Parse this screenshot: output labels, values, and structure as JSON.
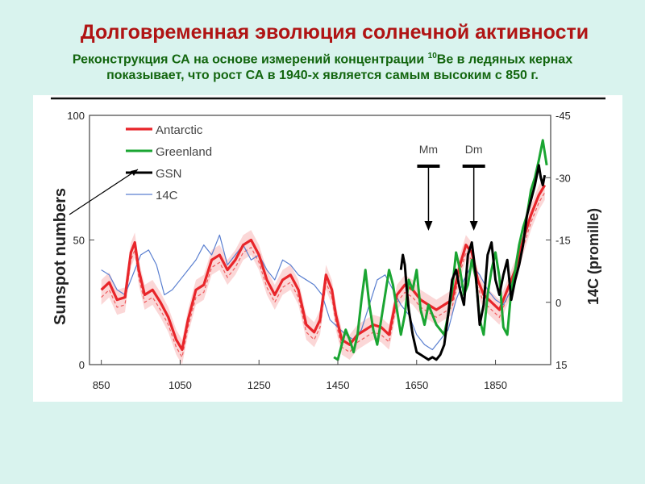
{
  "page": {
    "title": "Долговременная эволюция солнечной активности",
    "subtitle_line1_a": "Реконструкция СА на основе измерений концентрации ",
    "subtitle_line1_sup": "10",
    "subtitle_line1_b": "Be в ледяных кернах",
    "subtitle_line2": "показывает, что рост СА в 1940-х является самым высоким с 850 г."
  },
  "colors": {
    "antarctic": "#e8252a",
    "greenland": "#1aa532",
    "gsn": "#000000",
    "c14": "#5a7fd0",
    "shade": "#f7b7b7",
    "title": "#b01414",
    "subtitle": "#13660f",
    "background": "#d9f3ee"
  },
  "chart_data": {
    "type": "line",
    "xlabel": "",
    "ylabel": "Sunspot numbers",
    "y2label": "14C (promille)",
    "xlim": [
      820,
      1990
    ],
    "ylim": [
      0,
      100
    ],
    "y2lim": [
      15,
      -45
    ],
    "x_ticks": [
      850,
      1050,
      1250,
      1450,
      1650,
      1850
    ],
    "y_ticks": [
      0,
      50,
      100
    ],
    "y2_ticks": [
      -45,
      -30,
      -15,
      0,
      15
    ],
    "legend_position": "top-left",
    "annotations": [
      {
        "label": "Mm",
        "x": 1680
      },
      {
        "label": "Dm",
        "x": 1795
      }
    ],
    "series": [
      {
        "name": "Antarctic",
        "color_key": "antarctic",
        "x": [
          850,
          870,
          890,
          910,
          925,
          935,
          945,
          960,
          980,
          1000,
          1020,
          1040,
          1055,
          1070,
          1090,
          1110,
          1130,
          1150,
          1170,
          1190,
          1210,
          1230,
          1250,
          1270,
          1290,
          1310,
          1330,
          1350,
          1370,
          1390,
          1405,
          1420,
          1435,
          1445,
          1460,
          1480,
          1500,
          1520,
          1540,
          1560,
          1580,
          1600,
          1620,
          1640,
          1660,
          1680,
          1700,
          1720,
          1740,
          1760,
          1775,
          1790,
          1805,
          1820,
          1840,
          1860,
          1880,
          1900,
          1920,
          1940,
          1960,
          1975
        ],
        "y": [
          30,
          33,
          26,
          27,
          45,
          49,
          38,
          28,
          30,
          25,
          19,
          10,
          6,
          18,
          30,
          32,
          42,
          44,
          38,
          42,
          48,
          50,
          44,
          34,
          28,
          34,
          36,
          30,
          16,
          13,
          18,
          36,
          30,
          20,
          10,
          8,
          12,
          14,
          16,
          15,
          12,
          28,
          32,
          30,
          26,
          24,
          22,
          24,
          26,
          40,
          48,
          45,
          34,
          28,
          25,
          22,
          30,
          38,
          50,
          60,
          68,
          72
        ]
      },
      {
        "name": "Greenland",
        "color_key": "greenland",
        "x": [
          1440,
          1450,
          1460,
          1470,
          1480,
          1490,
          1500,
          1510,
          1520,
          1530,
          1540,
          1550,
          1560,
          1570,
          1580,
          1590,
          1600,
          1610,
          1620,
          1630,
          1640,
          1650,
          1660,
          1670,
          1680,
          1690,
          1700,
          1710,
          1720,
          1730,
          1740,
          1750,
          1760,
          1770,
          1780,
          1790,
          1800,
          1810,
          1820,
          1830,
          1840,
          1850,
          1860,
          1870,
          1880,
          1890,
          1900,
          1910,
          1920,
          1930,
          1940,
          1950,
          1960,
          1970,
          1980
        ],
        "y": [
          3,
          2,
          8,
          14,
          10,
          5,
          12,
          26,
          38,
          24,
          14,
          8,
          18,
          28,
          38,
          32,
          22,
          12,
          20,
          34,
          30,
          38,
          22,
          16,
          24,
          20,
          16,
          14,
          12,
          20,
          30,
          45,
          38,
          28,
          32,
          42,
          35,
          18,
          12,
          28,
          38,
          45,
          35,
          15,
          12,
          30,
          38,
          48,
          55,
          60,
          70,
          75,
          82,
          90,
          80
        ]
      },
      {
        "name": "GSN",
        "color_key": "gsn",
        "x": [
          1610,
          1615,
          1620,
          1625,
          1630,
          1640,
          1650,
          1660,
          1670,
          1680,
          1690,
          1700,
          1710,
          1720,
          1730,
          1740,
          1750,
          1760,
          1770,
          1780,
          1790,
          1800,
          1810,
          1820,
          1830,
          1840,
          1850,
          1860,
          1870,
          1880,
          1890,
          1900,
          1910,
          1920,
          1930,
          1940,
          1950,
          1960,
          1965,
          1970,
          1975
        ],
        "y": [
          38,
          44,
          40,
          30,
          22,
          12,
          5,
          4,
          3,
          2,
          3,
          2,
          4,
          8,
          20,
          34,
          38,
          30,
          24,
          44,
          49,
          36,
          16,
          24,
          44,
          49,
          34,
          28,
          36,
          42,
          26,
          34,
          40,
          48,
          60,
          66,
          72,
          80,
          75,
          72,
          76
        ]
      },
      {
        "name": "14C",
        "color_key": "c14",
        "x": [
          850,
          870,
          890,
          910,
          930,
          950,
          970,
          990,
          1010,
          1030,
          1050,
          1070,
          1090,
          1110,
          1130,
          1150,
          1170,
          1190,
          1210,
          1230,
          1250,
          1270,
          1290,
          1310,
          1330,
          1350,
          1370,
          1390,
          1410,
          1430,
          1450,
          1470,
          1490,
          1510,
          1530,
          1550,
          1570,
          1590,
          1610,
          1630,
          1650,
          1670,
          1690,
          1710,
          1730,
          1750,
          1770,
          1790,
          1810,
          1830,
          1850,
          1870,
          1890
        ],
        "y": [
          38,
          36,
          30,
          28,
          36,
          44,
          46,
          40,
          28,
          30,
          34,
          38,
          42,
          48,
          44,
          52,
          40,
          44,
          48,
          42,
          44,
          38,
          34,
          42,
          40,
          36,
          34,
          32,
          28,
          18,
          15,
          12,
          10,
          14,
          24,
          34,
          36,
          30,
          24,
          20,
          12,
          8,
          6,
          10,
          14,
          26,
          34,
          40,
          36,
          30,
          26,
          24,
          30
        ]
      }
    ]
  }
}
